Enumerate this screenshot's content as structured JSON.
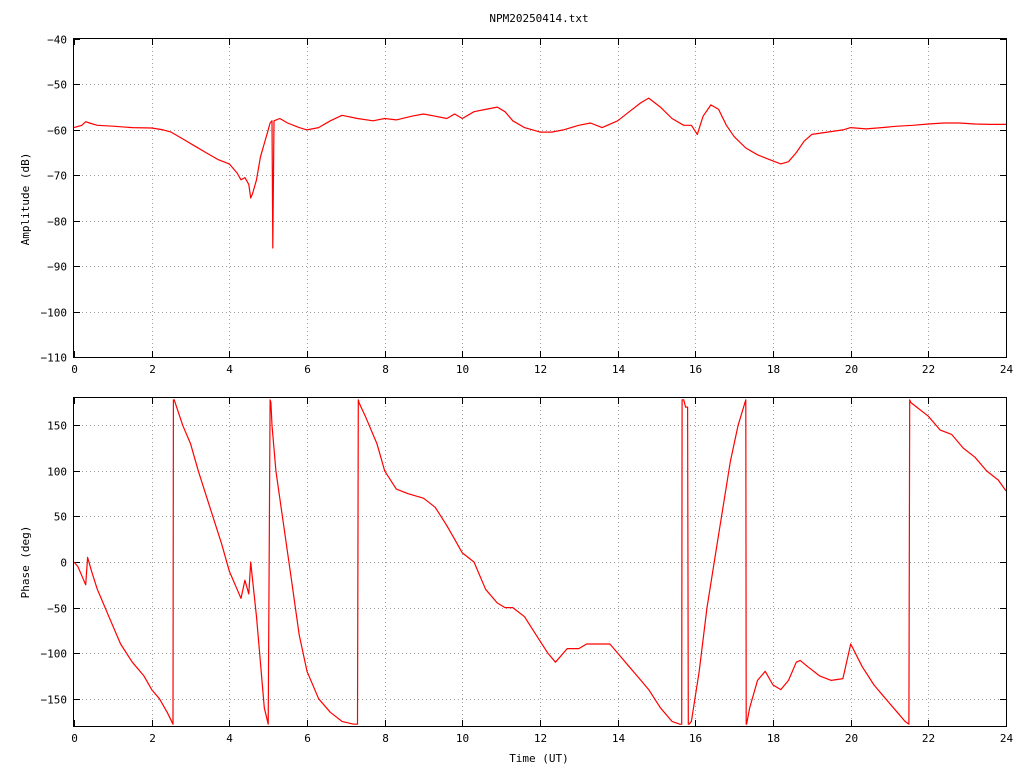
{
  "colors": {
    "series": "#ff0000",
    "frame": "#000000",
    "grid": "#a0a0a0",
    "background": "#ffffff"
  },
  "chart_data": [
    {
      "type": "line",
      "title": "NPM20250414.txt",
      "xlabel": "",
      "ylabel": "Amplitude (dB)",
      "xlim": [
        0,
        24
      ],
      "ylim": [
        -110,
        -40
      ],
      "grid": true,
      "xticks": [
        0,
        2,
        4,
        6,
        8,
        10,
        12,
        14,
        16,
        18,
        20,
        22,
        24
      ],
      "yticks": [
        -110,
        -100,
        -90,
        -80,
        -70,
        -60,
        -50,
        -40
      ],
      "series": [
        {
          "x": [
            0,
            0.2,
            0.3,
            0.4,
            0.6,
            1.0,
            1.5,
            2.0,
            2.3,
            2.5,
            2.8,
            3.1,
            3.4,
            3.7,
            4.0,
            4.2,
            4.3,
            4.4,
            4.5,
            4.55,
            4.6,
            4.7,
            4.8,
            4.9,
            5.0,
            5.05,
            5.1,
            5.12,
            5.15,
            5.3,
            5.5,
            5.8,
            6.0,
            6.3,
            6.6,
            6.9,
            7.3,
            7.7,
            8.0,
            8.3,
            8.7,
            9.0,
            9.3,
            9.6,
            9.8,
            10.0,
            10.3,
            10.6,
            10.9,
            11.1,
            11.3,
            11.6,
            12.0,
            12.3,
            12.6,
            13.0,
            13.3,
            13.6,
            14.0,
            14.3,
            14.6,
            14.8,
            15.1,
            15.4,
            15.7,
            15.9,
            16.05,
            16.2,
            16.4,
            16.6,
            16.8,
            17.0,
            17.3,
            17.6,
            17.9,
            18.2,
            18.4,
            18.6,
            18.8,
            19.0,
            19.4,
            19.8,
            20.0,
            20.4,
            20.8,
            21.2,
            21.6,
            22.0,
            22.4,
            22.8,
            23.2,
            23.6,
            24.0
          ],
          "values": [
            -59.5,
            -59,
            -58.2,
            -58.5,
            -59,
            -59.2,
            -59.5,
            -59.6,
            -60,
            -60.5,
            -62,
            -63.5,
            -65,
            -66.5,
            -67.5,
            -69.5,
            -71,
            -70.5,
            -72,
            -75,
            -74,
            -71,
            -66,
            -63,
            -60,
            -58.5,
            -58,
            -86,
            -58,
            -57.5,
            -58.5,
            -59.5,
            -60,
            -59.5,
            -58,
            -56.8,
            -57.5,
            -58,
            -57.5,
            -57.8,
            -57,
            -56.5,
            -57,
            -57.5,
            -56.5,
            -57.5,
            -56,
            -55.5,
            -55,
            -56,
            -58,
            -59.5,
            -60.5,
            -60.5,
            -60,
            -59,
            -58.5,
            -59.5,
            -58,
            -56,
            -54,
            -53,
            -55,
            -57.5,
            -59,
            -59,
            -61,
            -57,
            -54.5,
            -55.5,
            -59,
            -61.5,
            -64,
            -65.5,
            -66.5,
            -67.5,
            -67,
            -65,
            -62.5,
            -61,
            -60.5,
            -60,
            -59.5,
            -59.8,
            -59.5,
            -59.2,
            -59,
            -58.7,
            -58.5,
            -58.5,
            -58.7,
            -58.8,
            -58.8
          ]
        }
      ]
    },
    {
      "type": "line",
      "title": "",
      "xlabel": "Time (UT)",
      "ylabel": "Phase (deg)",
      "xlim": [
        0,
        24
      ],
      "ylim": [
        -180,
        180
      ],
      "grid": true,
      "xticks": [
        0,
        2,
        4,
        6,
        8,
        10,
        12,
        14,
        16,
        18,
        20,
        22,
        24
      ],
      "yticks": [
        -150,
        -100,
        -50,
        0,
        50,
        100,
        150
      ],
      "series": [
        {
          "x": [
            0,
            0.1,
            0.2,
            0.3,
            0.35,
            0.45,
            0.6,
            0.7,
            0.9,
            1.2,
            1.5,
            1.8,
            2.0,
            2.2,
            2.4,
            2.55,
            2.56,
            2.58,
            2.8,
            3.0,
            3.2,
            3.5,
            3.8,
            4.0,
            4.2,
            4.3,
            4.4,
            4.5,
            4.55,
            4.6,
            4.7,
            4.8,
            4.9,
            5.0,
            5.05,
            5.07,
            5.1,
            5.2,
            5.4,
            5.6,
            5.8,
            6.0,
            6.3,
            6.6,
            6.9,
            7.2,
            7.3,
            7.32,
            7.34,
            7.5,
            7.8,
            8.0,
            8.3,
            8.6,
            9.0,
            9.3,
            9.6,
            9.8,
            10.0,
            10.3,
            10.6,
            10.9,
            11.1,
            11.3,
            11.6,
            11.9,
            12.2,
            12.4,
            12.7,
            13.0,
            13.2,
            13.5,
            13.8,
            14.0,
            14.3,
            14.5,
            14.8,
            15.1,
            15.4,
            15.6,
            15.65,
            15.66,
            15.7,
            15.75,
            15.8,
            15.82,
            15.84,
            15.9,
            16.1,
            16.3,
            16.6,
            16.9,
            17.1,
            17.3,
            17.31,
            17.32,
            17.4,
            17.6,
            17.8,
            18.0,
            18.2,
            18.4,
            18.6,
            18.7,
            18.9,
            19.2,
            19.5,
            19.8,
            20.0,
            20.3,
            20.6,
            20.9,
            21.2,
            21.4,
            21.5,
            21.52,
            21.55,
            21.7,
            22.0,
            22.3,
            22.6,
            22.9,
            23.2,
            23.5,
            23.8,
            24.0
          ],
          "values": [
            0,
            -5,
            -15,
            -25,
            5,
            -10,
            -30,
            -40,
            -60,
            -90,
            -110,
            -125,
            -140,
            -150,
            -165,
            -178,
            178,
            178,
            150,
            130,
            100,
            60,
            20,
            -10,
            -30,
            -40,
            -20,
            -35,
            0,
            -20,
            -60,
            -110,
            -160,
            -178,
            178,
            175,
            150,
            100,
            40,
            -20,
            -80,
            -120,
            -150,
            -165,
            -175,
            -178,
            -178,
            178,
            175,
            160,
            130,
            100,
            80,
            75,
            70,
            60,
            40,
            25,
            10,
            0,
            -30,
            -45,
            -50,
            -50,
            -60,
            -80,
            -100,
            -110,
            -95,
            -95,
            -90,
            -90,
            -90,
            -100,
            -115,
            -125,
            -140,
            -160,
            -175,
            -178,
            -178,
            178,
            178,
            170,
            170,
            -178,
            -178,
            -175,
            -120,
            -50,
            30,
            110,
            150,
            178,
            -178,
            -178,
            -160,
            -130,
            -120,
            -135,
            -140,
            -130,
            -110,
            -108,
            -115,
            -125,
            -130,
            -128,
            -90,
            -115,
            -135,
            -150,
            -165,
            -175,
            -178,
            178,
            175,
            170,
            160,
            145,
            140,
            125,
            115,
            100,
            90,
            78
          ]
        }
      ]
    }
  ]
}
